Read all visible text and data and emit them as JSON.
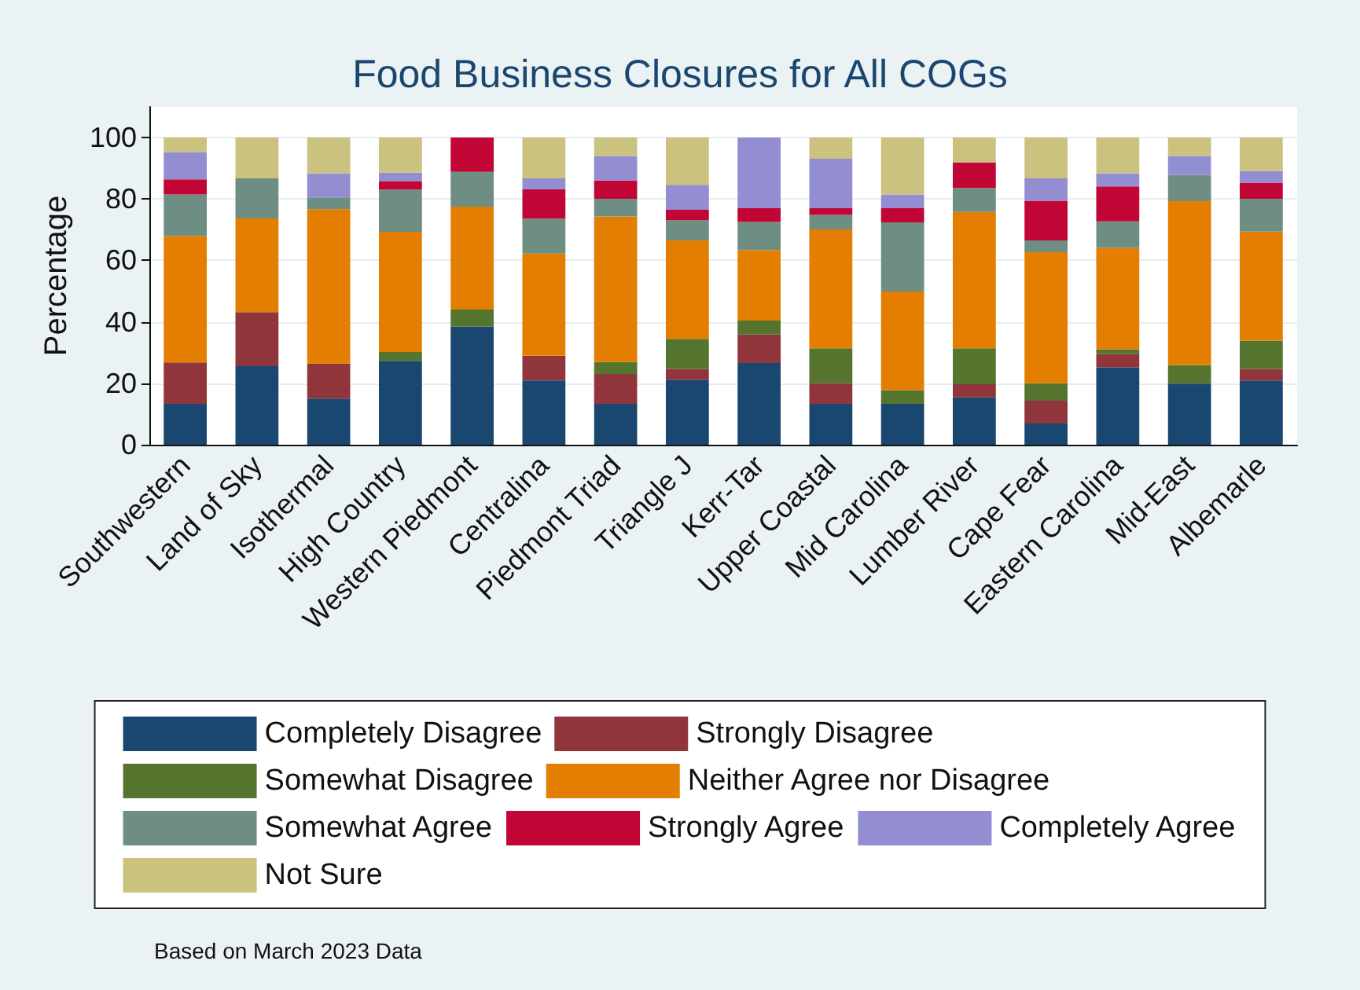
{
  "chart_data": {
    "type": "bar",
    "title": "Food Business Closures for All COGs",
    "ylabel": "Percentage",
    "categories": [
      "Southwestern",
      "Land of Sky",
      "Isothermal",
      "High Country",
      "Western Piedmont",
      "Centralina",
      "Piedmont Triad",
      "Triangle J",
      "Kerr-Tar",
      "Upper Coastal",
      "Mid Carolina",
      "Lumber River",
      "Cape Fear",
      "Eastern Carolina",
      "Mid-East",
      "Albemarle"
    ],
    "stacked": true,
    "series": [
      {
        "name": "Completely Disagree",
        "color": "#1a476f",
        "values": [
          13.3,
          25.6,
          15.0,
          27.3,
          38.5,
          20.9,
          13.3,
          21.2,
          26.6,
          13.3,
          13.3,
          15.4,
          6.9,
          25.2,
          19.9,
          20.9
        ]
      },
      {
        "name": "Strongly Disagree",
        "color": "#90353b",
        "values": [
          13.5,
          17.6,
          11.4,
          0,
          0,
          8.1,
          9.7,
          3.5,
          9.3,
          6.7,
          0,
          4.3,
          7.4,
          4.3,
          0,
          3.8
        ]
      },
      {
        "name": "Somewhat Disagree",
        "color": "#55752f",
        "values": [
          0,
          0,
          0,
          2.9,
          5.5,
          0,
          3.9,
          9.8,
          4.5,
          11.4,
          4.5,
          11.7,
          5.7,
          1.6,
          6.0,
          9.2
        ]
      },
      {
        "name": "Neither Agree nor Disagree",
        "color": "#e37e00",
        "values": [
          41.2,
          30.5,
          50.3,
          39.1,
          33.5,
          33.2,
          47.4,
          32.0,
          23.0,
          38.7,
          32.1,
          44.4,
          42.7,
          33.0,
          53.4,
          35.5
        ]
      },
      {
        "name": "Somewhat Agree",
        "color": "#6e8e84",
        "values": [
          13.5,
          13.0,
          3.8,
          13.8,
          11.3,
          11.4,
          5.8,
          6.6,
          9.1,
          4.7,
          22.5,
          7.8,
          3.8,
          8.6,
          8.6,
          10.7
        ]
      },
      {
        "name": "Strongly Agree",
        "color": "#c10534",
        "values": [
          4.9,
          0,
          0,
          2.7,
          11.2,
          9.6,
          5.9,
          3.4,
          4.5,
          2.2,
          4.6,
          8.3,
          12.9,
          11.4,
          0,
          5.2
        ]
      },
      {
        "name": "Completely Agree",
        "color": "#938dd2",
        "values": [
          8.8,
          0,
          7.8,
          2.8,
          0,
          3.5,
          8.0,
          8.1,
          23.0,
          16.1,
          4.5,
          0,
          7.3,
          4.2,
          6.1,
          3.8
        ]
      },
      {
        "name": "Not Sure",
        "color": "#cac27e",
        "values": [
          4.8,
          13.3,
          11.7,
          11.4,
          0,
          13.3,
          6.0,
          15.4,
          0,
          6.9,
          18.5,
          8.1,
          13.3,
          11.7,
          6.0,
          10.9
        ]
      }
    ],
    "ylim": [
      0,
      110
    ],
    "yticks": [
      0,
      20,
      40,
      60,
      80,
      100
    ],
    "grid": "y",
    "legend": "bottom",
    "annotations": [
      "Based on March 2023 Data"
    ]
  }
}
